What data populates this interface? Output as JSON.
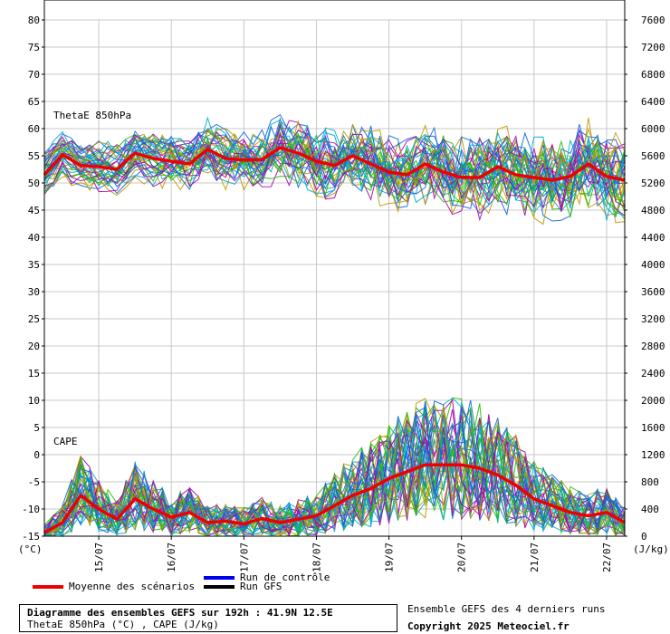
{
  "chart_data": {
    "type": "line",
    "panel_labels": [
      "ThetaE 850hPa",
      "CAPE"
    ],
    "left_axis": {
      "unit": "(°C)",
      "ticks": [
        80,
        75,
        70,
        65,
        60,
        55,
        50,
        45,
        40,
        35,
        30,
        25,
        20,
        15,
        10,
        5,
        0,
        -5,
        -10,
        -15
      ],
      "ylim": [
        -15,
        80
      ]
    },
    "right_axis": {
      "unit": "(J/kg)",
      "ticks": [
        7600,
        7200,
        6800,
        6400,
        6000,
        5600,
        5200,
        4800,
        4400,
        4000,
        3600,
        3200,
        2800,
        2400,
        2000,
        1600,
        1200,
        800,
        400,
        0
      ],
      "ylim": [
        0,
        7600
      ]
    },
    "x_axis": {
      "hour_range": [
        0,
        192
      ],
      "date_labels": [
        "15/07",
        "16/07",
        "17/07",
        "18/07",
        "19/07",
        "20/07",
        "21/07",
        "22/07"
      ],
      "date_label_hours": [
        18,
        42,
        66,
        90,
        114,
        138,
        162,
        186
      ]
    },
    "series": [
      {
        "name": "Moyenne des scénarios",
        "panel": "ThetaE 850hPa",
        "color": "#ee0000",
        "hours": [
          0,
          6,
          12,
          18,
          24,
          30,
          36,
          42,
          48,
          54,
          60,
          66,
          72,
          78,
          84,
          90,
          96,
          102,
          108,
          114,
          120,
          126,
          132,
          138,
          144,
          150,
          156,
          162,
          168,
          174,
          180,
          186,
          192
        ],
        "values": [
          51.5,
          55.2,
          53.2,
          53,
          52.5,
          55.5,
          54.5,
          54,
          53.5,
          56.2,
          54.5,
          54.2,
          54.3,
          56.5,
          55.5,
          54,
          53.2,
          55,
          53.5,
          52,
          51.5,
          53.5,
          52,
          51,
          51,
          53,
          51.5,
          51,
          50.5,
          51.2,
          53.5,
          51.2,
          50.5
        ]
      },
      {
        "name": "Moyenne des scénarios",
        "panel": "CAPE",
        "color": "#ee0000",
        "hours": [
          0,
          6,
          12,
          18,
          24,
          30,
          36,
          42,
          48,
          54,
          60,
          66,
          72,
          78,
          84,
          90,
          96,
          102,
          108,
          114,
          120,
          126,
          132,
          138,
          144,
          150,
          156,
          162,
          168,
          174,
          180,
          186,
          192
        ],
        "values": [
          50,
          200,
          600,
          400,
          250,
          550,
          400,
          280,
          350,
          200,
          220,
          180,
          260,
          200,
          250,
          300,
          450,
          600,
          700,
          850,
          950,
          1050,
          1050,
          1050,
          1000,
          900,
          750,
          550,
          450,
          350,
          300,
          350,
          200
        ]
      }
    ],
    "ensemble_colors": [
      "#22bb00",
      "#bb9900",
      "#aa00aa",
      "#00aacc",
      "#1166dd"
    ]
  },
  "legend": {
    "mean_label": "Moyenne des scénarios",
    "mean_color": "#ee0000",
    "control_label": "Run de contrôle",
    "control_color": "#0000ee",
    "gfs_label": "Run GFS",
    "gfs_color": "#000000"
  },
  "info": {
    "title": "Diagramme des ensembles GEFS sur 192h : 41.9N 12.5E",
    "subtitle": "ThetaE 850hPa (°C) , CAPE (J/kg)"
  },
  "credits": {
    "runs": "Ensemble GEFS des 4 derniers runs",
    "copyright": "Copyright 2025 Meteociel.fr"
  }
}
